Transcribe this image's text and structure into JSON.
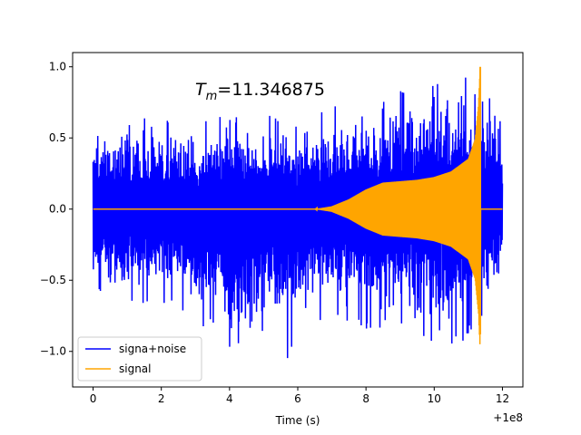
{
  "chart_data": {
    "type": "line",
    "xlabel": "Time (s)",
    "ylabel": "",
    "x_offset_label": "+1e8",
    "xlim": [
      -0.6,
      12.6
    ],
    "ylim": [
      -1.25,
      1.1
    ],
    "xticks": [
      0,
      2,
      4,
      6,
      8,
      10,
      12
    ],
    "xtick_labels": [
      "0",
      "2",
      "4",
      "6",
      "8",
      "10",
      "12"
    ],
    "yticks": [
      -1.0,
      -0.5,
      0.0,
      0.5,
      1.0
    ],
    "ytick_labels": [
      "−1.0",
      "−0.5",
      "0.0",
      "0.5",
      "1.0"
    ],
    "grid": false,
    "legend_position": "lower-left",
    "annotation": {
      "prefix": "T",
      "subscript": "m",
      "text": "=11.346875",
      "x": 3.0,
      "y": 0.82
    },
    "series": [
      {
        "name": "signa+noise",
        "color": "#0000ff",
        "description": "dense noisy signal spanning x 0 to 12",
        "envelope_points": [
          {
            "x": 0.0,
            "y_max": 0.62,
            "y_min": -0.65
          },
          {
            "x": 1.0,
            "y_max": 0.7,
            "y_min": -0.72
          },
          {
            "x": 2.0,
            "y_max": 0.65,
            "y_min": -0.7
          },
          {
            "x": 3.0,
            "y_max": 0.62,
            "y_min": -0.8
          },
          {
            "x": 4.0,
            "y_max": 0.68,
            "y_min": -1.1
          },
          {
            "x": 5.0,
            "y_max": 0.72,
            "y_min": -0.9
          },
          {
            "x": 5.6,
            "y_max": 0.65,
            "y_min": -1.15
          },
          {
            "x": 6.0,
            "y_max": 0.6,
            "y_min": -0.85
          },
          {
            "x": 7.0,
            "y_max": 0.72,
            "y_min": -0.8
          },
          {
            "x": 8.0,
            "y_max": 0.75,
            "y_min": -0.85
          },
          {
            "x": 9.0,
            "y_max": 0.85,
            "y_min": -0.85
          },
          {
            "x": 10.0,
            "y_max": 0.9,
            "y_min": -1.1
          },
          {
            "x": 11.0,
            "y_max": 0.95,
            "y_min": -0.9
          },
          {
            "x": 11.35,
            "y_max": 1.0,
            "y_min": -0.8
          },
          {
            "x": 12.0,
            "y_max": 0.7,
            "y_min": -0.6
          }
        ]
      },
      {
        "name": "signal",
        "color": "#ffa500",
        "description": "chirp amplitude envelope, zero then growing, cut at 11.35",
        "envelope_points": [
          {
            "x": 0.0,
            "amp": 0.0
          },
          {
            "x": 6.5,
            "amp": 0.0
          },
          {
            "x": 7.0,
            "amp": 0.02
          },
          {
            "x": 7.5,
            "amp": 0.07
          },
          {
            "x": 8.0,
            "amp": 0.14
          },
          {
            "x": 8.5,
            "amp": 0.19
          },
          {
            "x": 9.0,
            "amp": 0.2
          },
          {
            "x": 9.5,
            "amp": 0.21
          },
          {
            "x": 10.0,
            "amp": 0.23
          },
          {
            "x": 10.5,
            "amp": 0.27
          },
          {
            "x": 11.0,
            "amp": 0.36
          },
          {
            "x": 11.2,
            "amp": 0.5
          },
          {
            "x": 11.3,
            "amp": 0.75
          },
          {
            "x": 11.35,
            "amp": 1.0
          },
          {
            "x": 11.36,
            "amp": 0.0
          },
          {
            "x": 12.0,
            "amp": 0.0
          }
        ]
      }
    ]
  }
}
